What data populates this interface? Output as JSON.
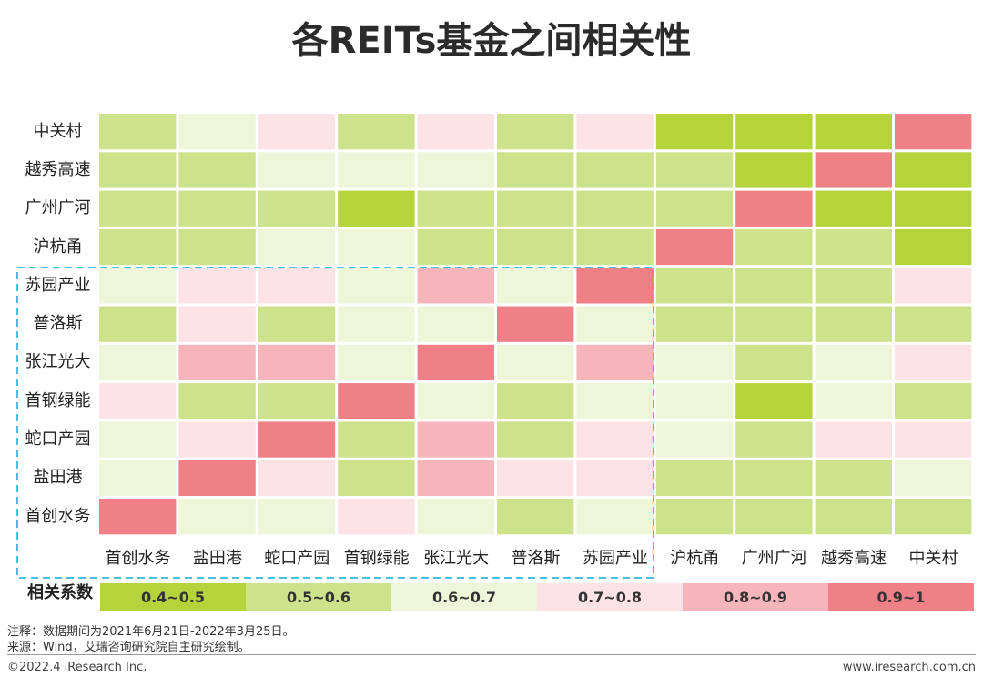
{
  "header": {
    "title": "各REITs基金之间相关性"
  },
  "chart_data": {
    "type": "heatmap",
    "title": "各REITs基金之间相关性",
    "rows": [
      "中关村",
      "越秀高速",
      "广州广河",
      "沪杭甬",
      "苏园产业",
      "普洛斯",
      "张江光大",
      "首钢绿能",
      "蛇口产园",
      "盐田港",
      "首创水务"
    ],
    "columns": [
      "首创水务",
      "盐田港",
      "蛇口产园",
      "首钢绿能",
      "张江光大",
      "普洛斯",
      "苏园产业",
      "沪杭甬",
      "广州广河",
      "越秀高速",
      "中关村"
    ],
    "category_matrix": [
      [
        1,
        2,
        3,
        1,
        3,
        1,
        3,
        0,
        0,
        0,
        5
      ],
      [
        1,
        1,
        2,
        2,
        2,
        1,
        1,
        1,
        0,
        5,
        0
      ],
      [
        1,
        1,
        1,
        0,
        1,
        1,
        1,
        1,
        5,
        0,
        0
      ],
      [
        1,
        1,
        2,
        2,
        1,
        1,
        1,
        5,
        1,
        1,
        0
      ],
      [
        2,
        3,
        3,
        2,
        4,
        2,
        5,
        1,
        1,
        1,
        3
      ],
      [
        1,
        3,
        1,
        2,
        2,
        5,
        2,
        1,
        1,
        1,
        1
      ],
      [
        2,
        4,
        4,
        2,
        5,
        2,
        4,
        2,
        1,
        2,
        3
      ],
      [
        3,
        1,
        1,
        5,
        2,
        1,
        2,
        2,
        0,
        2,
        1
      ],
      [
        2,
        3,
        5,
        1,
        4,
        1,
        3,
        2,
        1,
        3,
        3
      ],
      [
        2,
        5,
        3,
        1,
        4,
        3,
        3,
        1,
        1,
        1,
        2
      ],
      [
        5,
        2,
        2,
        3,
        2,
        1,
        2,
        1,
        1,
        1,
        1
      ]
    ],
    "legend_title": "相关系数",
    "legend": [
      {
        "label": "0.4~0.5",
        "color": "#b5d43c"
      },
      {
        "label": "0.5~0.6",
        "color": "#cde38b"
      },
      {
        "label": "0.6~0.7",
        "color": "#eef5d8"
      },
      {
        "label": "0.7~0.8",
        "color": "#fde3e6"
      },
      {
        "label": "0.8~0.9",
        "color": "#f6b5bb"
      },
      {
        "label": "0.9~1",
        "color": "#f08088"
      }
    ],
    "highlight_color": "#46bfe0"
  },
  "notes": {
    "note": "注释：数据期间为2021年6月21日-2022年3月25日。",
    "source": "来源：Wind，艾瑞咨询研究院自主研究绘制。"
  },
  "footer": {
    "copyright": "©2022.4 iResearch Inc.",
    "website": "www.iresearch.com.cn"
  }
}
